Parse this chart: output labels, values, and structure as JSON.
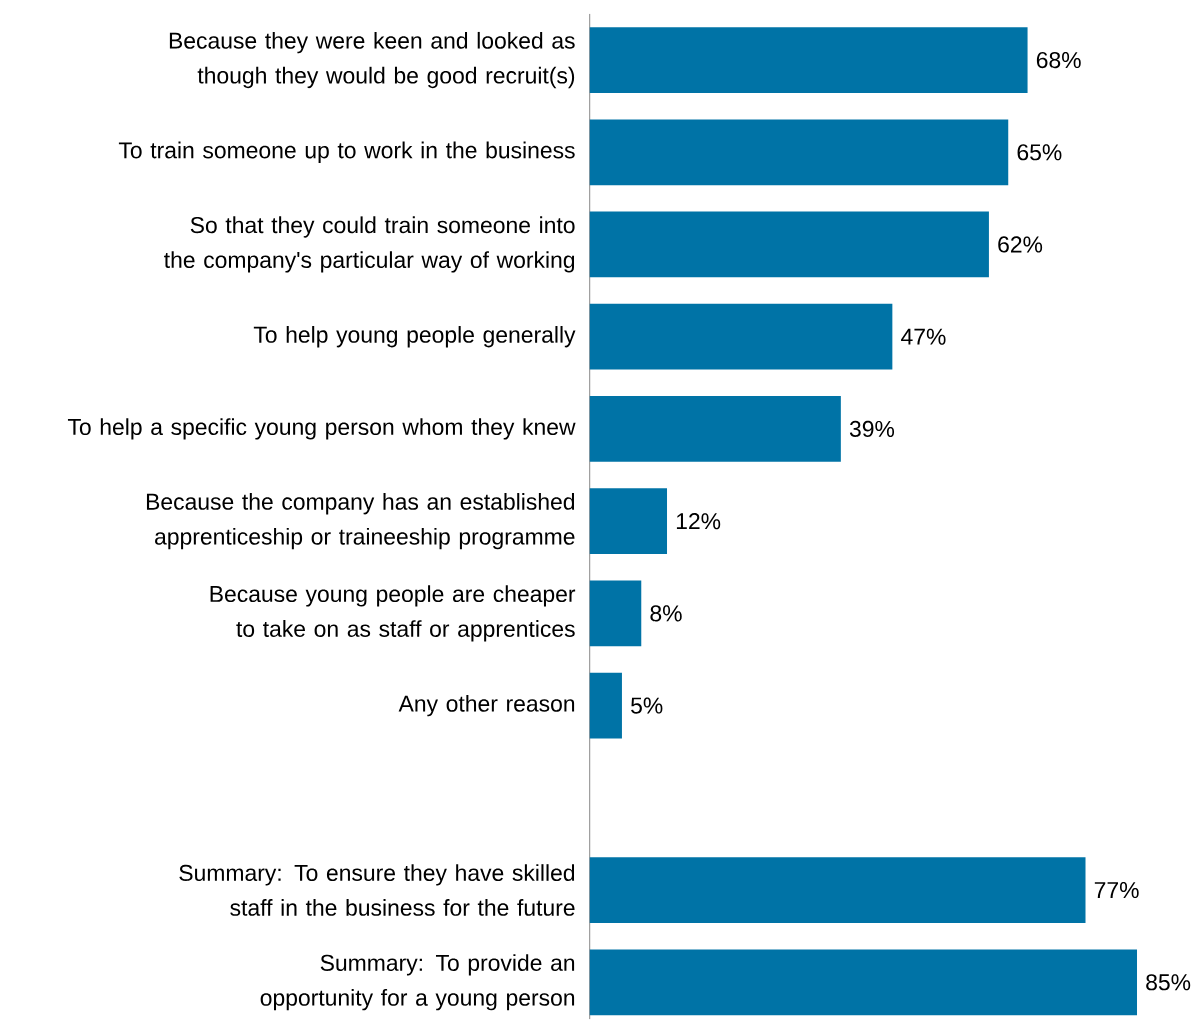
{
  "chart_data": {
    "type": "bar",
    "orientation": "horizontal",
    "color": "#0073a6",
    "categories": [
      "Because they were keen and looked as though they would be good recruit(s)",
      "To train someone up to work in the business",
      "So that they could train someone into the company's particular way of working",
      "To help young people generally",
      "To help a specific young person whom they knew",
      "Because the company has an established apprenticeship or traineeship programme",
      "Because young people are cheaper to take on as staff or apprentices",
      "Any other reason",
      null,
      "Summary: To ensure they have skilled staff in the business for the future",
      "Summary: To provide an opportunity for a young person"
    ],
    "values": [
      68,
      65,
      62,
      47,
      39,
      12,
      8,
      5,
      null,
      77,
      85
    ],
    "value_labels": [
      "68%",
      "65%",
      "62%",
      "47%",
      "39%",
      "12%",
      "8%",
      "5%",
      null,
      "77%",
      "85%"
    ]
  }
}
